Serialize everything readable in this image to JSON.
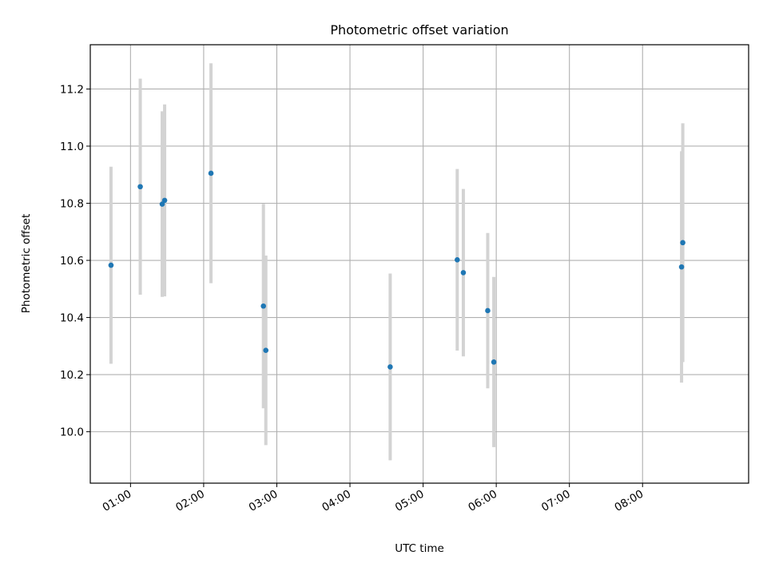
{
  "chart_data": {
    "type": "scatter",
    "title": "Photometric offset variation",
    "xlabel": "UTC time",
    "ylabel": "Photometric offset",
    "x_is_time": true,
    "xlim": [
      "00:27",
      "09:27"
    ],
    "ylim": [
      9.82,
      11.355
    ],
    "x_ticks": [
      "01:00",
      "02:00",
      "03:00",
      "04:00",
      "05:00",
      "06:00",
      "07:00",
      "08:00"
    ],
    "y_ticks": [
      "10.0",
      "10.2",
      "10.4",
      "10.6",
      "10.8",
      "11.0",
      "11.2"
    ],
    "grid": true,
    "marker_color": "#1f77b4",
    "errorbar_color": "#d3d3d3",
    "points": [
      {
        "x": "00:44",
        "y": 10.583,
        "err": 0.345
      },
      {
        "x": "01:08",
        "y": 10.858,
        "err": 0.378
      },
      {
        "x": "01:26",
        "y": 10.797,
        "err": 0.325
      },
      {
        "x": "01:28",
        "y": 10.81,
        "err": 0.336
      },
      {
        "x": "02:06",
        "y": 10.905,
        "err": 0.385
      },
      {
        "x": "02:49",
        "y": 10.44,
        "err": 0.358
      },
      {
        "x": "02:51",
        "y": 10.285,
        "err": 0.332
      },
      {
        "x": "04:33",
        "y": 10.227,
        "err": 0.327
      },
      {
        "x": "05:28",
        "y": 10.602,
        "err": 0.318
      },
      {
        "x": "05:33",
        "y": 10.557,
        "err": 0.293
      },
      {
        "x": "05:53",
        "y": 10.424,
        "err": 0.272
      },
      {
        "x": "05:58",
        "y": 10.244,
        "err": 0.298
      },
      {
        "x": "08:32",
        "y": 10.577,
        "err": 0.405
      },
      {
        "x": "08:33",
        "y": 10.662,
        "err": 0.418
      }
    ]
  }
}
